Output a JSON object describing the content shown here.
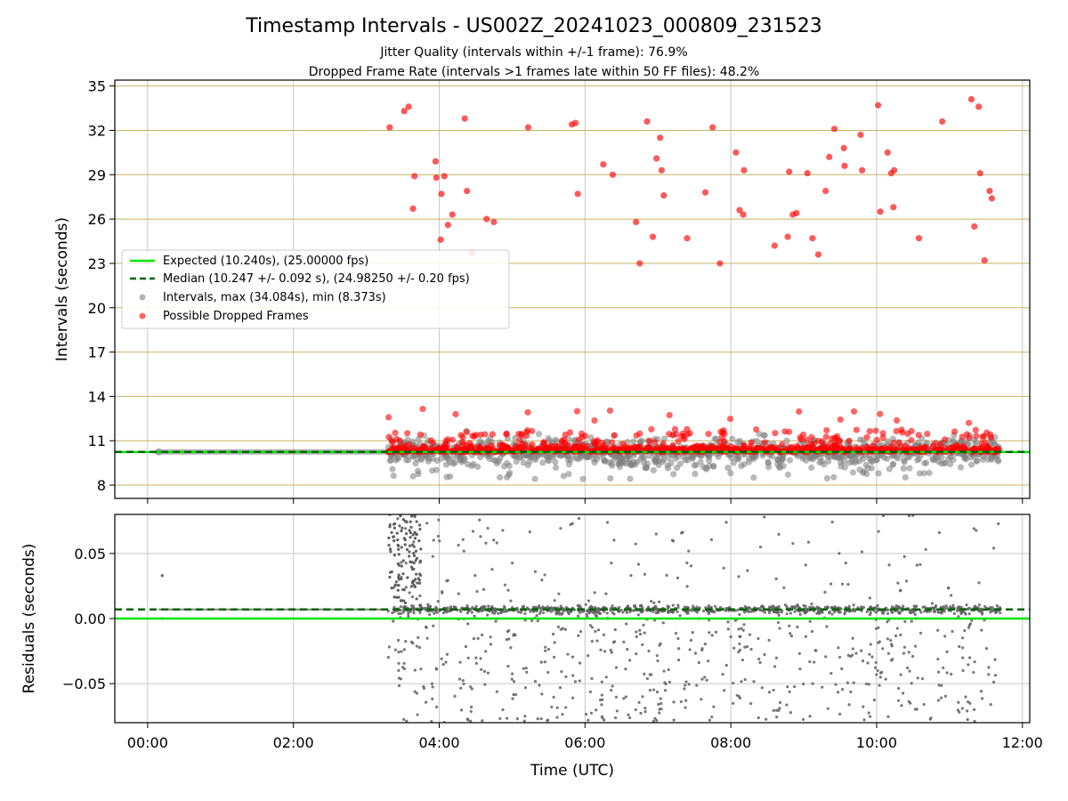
{
  "chart_data": {
    "type": "scatter",
    "title": "Timestamp Intervals - US002Z_20241023_000809_231523",
    "subtitle_lines": [
      "Jitter Quality (intervals within +/-1 frame): 76.9%",
      "Dropped Frame Rate (intervals >1 frames late within 50 FF files): 48.2%"
    ],
    "xlabel": "Time (UTC)",
    "x_ticks": [
      "00:00",
      "02:00",
      "04:00",
      "06:00",
      "08:00",
      "10:00",
      "12:00"
    ],
    "x_tick_hours": [
      0,
      2,
      4,
      6,
      8,
      10,
      12
    ],
    "xlim_hours": [
      -0.45,
      12.1
    ],
    "colors": {
      "expected": "#00e600",
      "median": "#006400",
      "intervals": "#808080",
      "dropped": "#ff0000",
      "hgrid_top": "#c8b464",
      "grid": "#c8c8c8"
    },
    "top": {
      "ylabel": "Intervals (seconds)",
      "ylim": [
        7.1,
        35.4
      ],
      "y_ticks": [
        8,
        11,
        14,
        17,
        20,
        23,
        26,
        29,
        32,
        35
      ],
      "expected": 10.24,
      "median": 10.247,
      "dropped_outliers": [
        {
          "x": 3.32,
          "y": 32.2
        },
        {
          "x": 3.52,
          "y": 33.3
        },
        {
          "x": 3.58,
          "y": 33.6
        },
        {
          "x": 3.66,
          "y": 28.9
        },
        {
          "x": 3.64,
          "y": 26.7
        },
        {
          "x": 3.95,
          "y": 29.9
        },
        {
          "x": 3.96,
          "y": 28.8
        },
        {
          "x": 4.03,
          "y": 27.7
        },
        {
          "x": 4.07,
          "y": 28.9
        },
        {
          "x": 4.02,
          "y": 24.6
        },
        {
          "x": 4.12,
          "y": 25.6
        },
        {
          "x": 4.18,
          "y": 26.3
        },
        {
          "x": 4.35,
          "y": 32.8
        },
        {
          "x": 4.38,
          "y": 27.9
        },
        {
          "x": 4.45,
          "y": 23.7
        },
        {
          "x": 4.65,
          "y": 26.0
        },
        {
          "x": 4.75,
          "y": 25.8
        },
        {
          "x": 5.22,
          "y": 32.2
        },
        {
          "x": 5.82,
          "y": 32.4
        },
        {
          "x": 5.87,
          "y": 32.5
        },
        {
          "x": 5.9,
          "y": 27.7
        },
        {
          "x": 6.25,
          "y": 29.7
        },
        {
          "x": 6.38,
          "y": 29.0
        },
        {
          "x": 6.7,
          "y": 25.8
        },
        {
          "x": 6.75,
          "y": 23.0
        },
        {
          "x": 6.85,
          "y": 32.6
        },
        {
          "x": 6.93,
          "y": 24.8
        },
        {
          "x": 6.98,
          "y": 30.1
        },
        {
          "x": 7.03,
          "y": 31.5
        },
        {
          "x": 7.05,
          "y": 29.3
        },
        {
          "x": 7.08,
          "y": 27.6
        },
        {
          "x": 7.4,
          "y": 24.7
        },
        {
          "x": 7.65,
          "y": 27.8
        },
        {
          "x": 7.75,
          "y": 32.2
        },
        {
          "x": 7.85,
          "y": 23.0
        },
        {
          "x": 8.07,
          "y": 30.5
        },
        {
          "x": 8.12,
          "y": 26.6
        },
        {
          "x": 8.17,
          "y": 26.3
        },
        {
          "x": 8.18,
          "y": 29.3
        },
        {
          "x": 8.6,
          "y": 24.2
        },
        {
          "x": 8.78,
          "y": 24.8
        },
        {
          "x": 8.8,
          "y": 29.2
        },
        {
          "x": 8.85,
          "y": 26.3
        },
        {
          "x": 8.9,
          "y": 26.4
        },
        {
          "x": 9.05,
          "y": 29.1
        },
        {
          "x": 9.12,
          "y": 24.7
        },
        {
          "x": 9.2,
          "y": 23.6
        },
        {
          "x": 9.3,
          "y": 27.9
        },
        {
          "x": 9.35,
          "y": 30.2
        },
        {
          "x": 9.42,
          "y": 32.1
        },
        {
          "x": 9.55,
          "y": 30.8
        },
        {
          "x": 9.56,
          "y": 29.6
        },
        {
          "x": 9.78,
          "y": 31.7
        },
        {
          "x": 9.8,
          "y": 29.3
        },
        {
          "x": 10.02,
          "y": 33.7
        },
        {
          "x": 10.05,
          "y": 26.5
        },
        {
          "x": 10.15,
          "y": 30.5
        },
        {
          "x": 10.2,
          "y": 29.1
        },
        {
          "x": 10.24,
          "y": 29.3
        },
        {
          "x": 10.23,
          "y": 26.8
        },
        {
          "x": 10.58,
          "y": 24.7
        },
        {
          "x": 10.9,
          "y": 32.6
        },
        {
          "x": 11.3,
          "y": 34.1
        },
        {
          "x": 11.34,
          "y": 25.5
        },
        {
          "x": 11.4,
          "y": 33.6
        },
        {
          "x": 11.42,
          "y": 29.1
        },
        {
          "x": 11.48,
          "y": 23.2
        },
        {
          "x": 11.55,
          "y": 27.9
        },
        {
          "x": 11.58,
          "y": 27.4
        }
      ]
    },
    "bottom": {
      "ylabel": "Residuals (seconds)",
      "ylim": [
        -0.08,
        0.08
      ],
      "y_ticks": [
        0.05,
        0.0,
        -0.05
      ],
      "y_tick_labels": [
        "0.05",
        "0.00",
        "−0.05"
      ],
      "median_residual": 0.007
    },
    "legend": {
      "placement": "center-left",
      "entries": [
        {
          "label": "Expected (10.240s), (25.00000 fps)",
          "kind": "solid-line",
          "color": "#00e600"
        },
        {
          "label": "Median (10.247 +/- 0.092 s), (24.98250 +/- 0.20 fps)",
          "kind": "dashed-line",
          "color": "#006400"
        },
        {
          "label": "Intervals, max (34.084s), min (8.373s)",
          "kind": "marker",
          "color": "#808080"
        },
        {
          "label": "Possible Dropped Frames",
          "kind": "marker",
          "color": "#ff0000"
        }
      ]
    },
    "data_start_hour": 3.3,
    "data_end_hour": 11.7,
    "early_run_hours": [
      0.15,
      3.3
    ],
    "grid": true
  }
}
